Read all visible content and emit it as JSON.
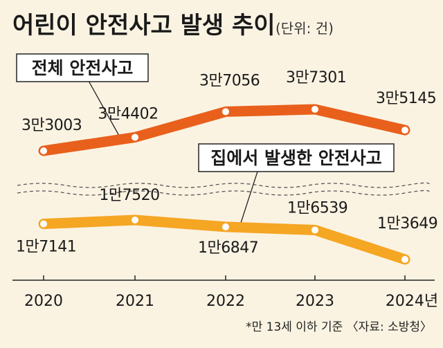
{
  "title": "어린이 안전사고 발생 추이",
  "unit": "(단위: 건)",
  "footnote": "*만 13세 이하 기준 〈자료: 소방청〉",
  "chart_data": {
    "type": "line",
    "categories": [
      "2020",
      "2021",
      "2022",
      "2023",
      "2024년"
    ],
    "series": [
      {
        "name": "전체 안전사고",
        "color": "#e8601c",
        "values": [
          33003,
          34402,
          37056,
          37301,
          35145
        ],
        "labels": [
          "3만3003",
          "3만4402",
          "3만7056",
          "3만7301",
          "3만5145"
        ]
      },
      {
        "name": "집에서 발생한 안전사고",
        "color": "#f5a623",
        "values": [
          17141,
          17520,
          16847,
          16539,
          13649
        ],
        "labels": [
          "1만7141",
          "1만7520",
          "1만6847",
          "1만6539",
          "1만3649"
        ]
      }
    ],
    "axis_break": true,
    "grid": false,
    "legend": "callout-boxes"
  }
}
